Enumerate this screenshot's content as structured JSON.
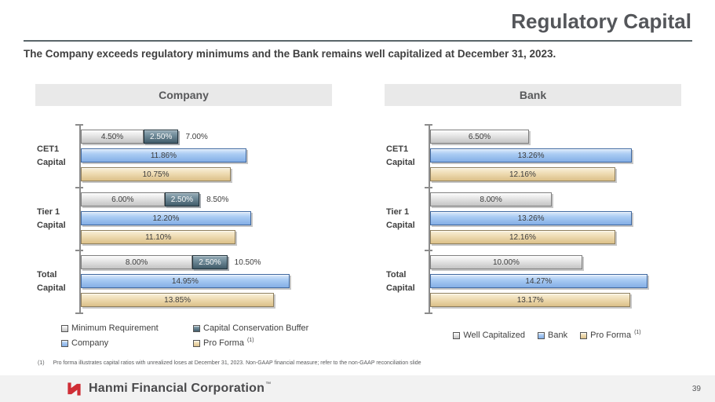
{
  "slide": {
    "title": "Regulatory Capital",
    "subtitle": "The Company exceeds regulatory minimums and the Bank remains well capitalized at December 31, 2023.",
    "footnote_marker": "(1)",
    "footnote": "Pro forma illustrates capital ratios with unrealized loses at December 31, 2023. Non-GAAP financial measure; refer to the non-GAAP reconciliation slide",
    "footer_brand": "Hanmi Financial Corporation",
    "brand_tm": "™",
    "page_number": "39"
  },
  "colors": {
    "accent_red": "#cf2e36",
    "panel_header_bg": "#e9e9e9",
    "bar_gray": "#d9d9d9",
    "bar_slate": "#5f7d8c",
    "bar_blue": "#a6c9f2",
    "bar_tan": "#ecd9ae",
    "axis_gray": "#8c8c8c",
    "footer_bg": "#f2f2f2"
  },
  "chart_data": [
    {
      "type": "bar",
      "orientation": "horizontal",
      "title": "Company",
      "categories": [
        "CET1\nCapital",
        "Tier 1\nCapital",
        "Total\nCapital"
      ],
      "xlim": [
        0,
        18
      ],
      "grid": false,
      "legend_position": "bottom",
      "legend_layout": "grid-2col",
      "stacked_series": {
        "labels": [
          "Minimum Requirement",
          "Capital Conservation Buffer"
        ],
        "style_keys": [
          "gray",
          "slate"
        ],
        "segments": [
          [
            4.5,
            2.5
          ],
          [
            6.0,
            2.5
          ],
          [
            8.0,
            2.5
          ]
        ],
        "segment_labels": [
          [
            "4.50%",
            "2.50%"
          ],
          [
            "6.00%",
            "2.50%"
          ],
          [
            "8.00%",
            "2.50%"
          ]
        ],
        "total_values": [
          7.0,
          8.5,
          10.5
        ],
        "totals": [
          "7.00%",
          "8.50%",
          "10.50%"
        ]
      },
      "series": [
        {
          "name": "Company",
          "style_key": "blue",
          "values": [
            11.86,
            12.2,
            14.95
          ],
          "labels": [
            "11.86%",
            "12.20%",
            "14.95%"
          ]
        },
        {
          "name": "Pro Forma",
          "style_key": "tan",
          "values": [
            10.75,
            11.1,
            13.85
          ],
          "labels": [
            "10.75%",
            "11.10%",
            "13.85%"
          ]
        }
      ],
      "legend": [
        {
          "label": "Minimum Requirement",
          "style_key": "gray"
        },
        {
          "label": "Capital Conservation Buffer",
          "style_key": "slate"
        },
        {
          "label": "Company",
          "style_key": "blue"
        },
        {
          "label": "Pro Forma",
          "style_key": "tan",
          "sup": "(1)"
        }
      ]
    },
    {
      "type": "bar",
      "orientation": "horizontal",
      "title": "Bank",
      "categories": [
        "CET1\nCapital",
        "Tier 1\nCapital",
        "Total\nCapital"
      ],
      "xlim": [
        0,
        16.5
      ],
      "grid": false,
      "legend_position": "bottom",
      "legend_layout": "row",
      "series": [
        {
          "name": "Well Capitalized",
          "style_key": "gray",
          "values": [
            6.5,
            8.0,
            10.0
          ],
          "labels": [
            "6.50%",
            "8.00%",
            "10.00%"
          ]
        },
        {
          "name": "Bank",
          "style_key": "blue",
          "values": [
            13.26,
            13.26,
            14.27
          ],
          "labels": [
            "13.26%",
            "13.26%",
            "14.27%"
          ]
        },
        {
          "name": "Pro Forma",
          "style_key": "tan",
          "values": [
            12.16,
            12.16,
            13.17
          ],
          "labels": [
            "12.16%",
            "12.16%",
            "13.17%"
          ]
        }
      ],
      "legend": [
        {
          "label": "Well Capitalized",
          "style_key": "gray"
        },
        {
          "label": "Bank",
          "style_key": "blue"
        },
        {
          "label": "Pro Forma",
          "style_key": "tan",
          "sup": "(1)"
        }
      ]
    }
  ]
}
